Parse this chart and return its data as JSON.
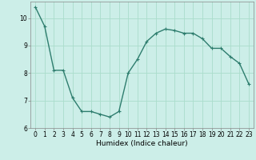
{
  "x": [
    0,
    1,
    2,
    3,
    4,
    5,
    6,
    7,
    8,
    9,
    10,
    11,
    12,
    13,
    14,
    15,
    16,
    17,
    18,
    19,
    20,
    21,
    22,
    23
  ],
  "y": [
    10.4,
    9.7,
    8.1,
    8.1,
    7.1,
    6.6,
    6.6,
    6.5,
    6.4,
    6.6,
    8.0,
    8.5,
    9.15,
    9.45,
    9.6,
    9.55,
    9.45,
    9.45,
    9.25,
    8.9,
    8.9,
    8.6,
    8.35,
    7.6
  ],
  "line_color": "#2e7d6e",
  "marker": "+",
  "marker_size": 3,
  "linewidth": 1.0,
  "xlabel": "Humidex (Indice chaleur)",
  "xlabel_fontsize": 6.5,
  "background_color": "#cceee8",
  "grid_color": "#aaddcc",
  "xlim": [
    -0.5,
    23.5
  ],
  "ylim": [
    6,
    10.6
  ],
  "yticks": [
    6,
    7,
    8,
    9,
    10
  ],
  "xticks": [
    0,
    1,
    2,
    3,
    4,
    5,
    6,
    7,
    8,
    9,
    10,
    11,
    12,
    13,
    14,
    15,
    16,
    17,
    18,
    19,
    20,
    21,
    22,
    23
  ],
  "tick_fontsize": 5.5,
  "spine_color": "#888888"
}
